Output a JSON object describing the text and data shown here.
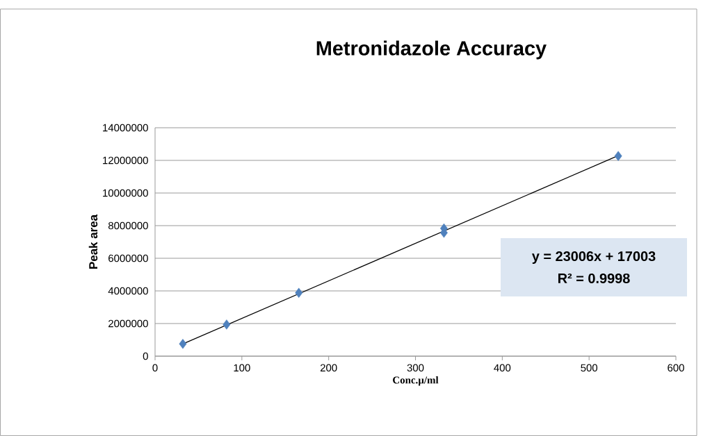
{
  "chart_data": {
    "type": "scatter",
    "title": "Metronidazole Accuracy",
    "xlabel": "Conc.µ/ml",
    "ylabel": "Peak area",
    "xlim": [
      0,
      600
    ],
    "xticks": [
      0,
      100,
      200,
      300,
      400,
      500,
      600
    ],
    "ylim": [
      0,
      14000000
    ],
    "yticks": [
      0,
      2000000,
      4000000,
      6000000,
      8000000,
      10000000,
      12000000,
      14000000
    ],
    "grid": "y",
    "series": [
      {
        "color": "#4f81bd",
        "marker": "diamond",
        "x": [
          32,
          82.4,
          165.6,
          332.8,
          332.8,
          533.6
        ],
        "values": [
          750000,
          1940000,
          3880000,
          7830000,
          7560000,
          12270000
        ]
      },
      {
        "type": "line",
        "marker": "none",
        "color": "#000000",
        "x": [
          32,
          533.6
        ],
        "values": [
          750000,
          12290000
        ]
      }
    ],
    "annotations": [
      "y = 23006x + 17003",
      "R² = 0.9998"
    ]
  }
}
